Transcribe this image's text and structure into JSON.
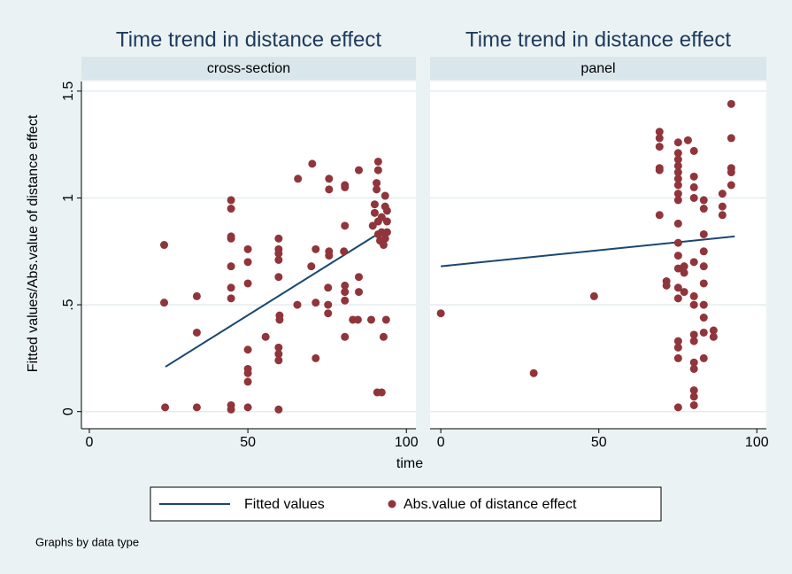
{
  "figure": {
    "ylabel": "Fitted values/Abs.value of distance effect",
    "xlabel": "time",
    "note": "Graphs by data type"
  },
  "chart_data": [
    {
      "type": "scatter",
      "title": "Time trend in distance effect",
      "subtitle": "cross-section",
      "xlim": [
        -2.5,
        103
      ],
      "xticks": [
        0,
        50,
        100
      ],
      "ylim": [
        -0.08,
        1.545
      ],
      "yticks": [
        0,
        {
          "value": 0.5,
          "label": ".5"
        },
        1,
        1.5
      ],
      "grid": true,
      "series": [
        {
          "name": "Fitted values",
          "type": "line",
          "color": "#1a476f",
          "x": [
            24,
            93
          ],
          "values": [
            0.21,
            0.85
          ]
        },
        {
          "name": "Abs.value of distance effect",
          "type": "scatter",
          "color": "#90353b",
          "x": [
            23.6,
            23.6,
            23.9,
            33.9,
            33.9,
            33.9,
            44.7,
            44.7,
            44.7,
            44.7,
            44.7,
            44.7,
            44.7,
            44.7,
            44.7,
            50,
            50,
            50,
            50,
            50,
            50,
            50,
            50,
            55.6,
            59.7,
            59.7,
            59.7,
            59.7,
            59.7,
            60,
            60,
            59.7,
            59.7,
            59.7,
            59.7,
            65.8,
            65.6,
            70.3,
            70,
            71.4,
            71.4,
            71.4,
            75.6,
            75.6,
            75.6,
            75.6,
            75.3,
            75.3,
            75.3,
            80.6,
            80.6,
            80.6,
            80.3,
            80.6,
            80.6,
            80.6,
            80.6,
            85,
            85,
            85,
            83.1,
            84.7,
            88.9,
            91.1,
            91.1,
            90.6,
            90.6,
            90,
            90,
            89.4,
            91.1,
            91.1,
            92.2,
            93.3,
            93.3,
            93.9,
            93.9,
            93.3,
            92.8,
            92.2,
            91.7,
            93.9,
            92.2,
            90.8,
            93.6,
            92.8
          ],
          "values": [
            0.78,
            0.51,
            0.02,
            0.37,
            0.54,
            0.02,
            0.99,
            0.95,
            0.82,
            0.81,
            0.68,
            0.58,
            0.53,
            0.03,
            0.01,
            0.76,
            0.7,
            0.6,
            0.29,
            0.2,
            0.18,
            0.14,
            0.02,
            0.35,
            0.81,
            0.76,
            0.74,
            0.71,
            0.63,
            0.45,
            0.43,
            0.3,
            0.27,
            0.24,
            0.01,
            1.09,
            0.5,
            1.16,
            0.68,
            0.76,
            0.51,
            0.25,
            1.09,
            1.04,
            0.75,
            0.73,
            0.58,
            0.5,
            0.46,
            1.06,
            1.05,
            0.87,
            0.75,
            0.59,
            0.56,
            0.52,
            0.35,
            1.13,
            0.63,
            0.56,
            0.43,
            0.43,
            0.43,
            1.17,
            1.13,
            1.07,
            1.04,
            0.97,
            0.93,
            0.87,
            0.83,
            0.89,
            0.91,
            1.01,
            0.96,
            0.89,
            0.84,
            0.81,
            0.78,
            0.84,
            0.8,
            0.94,
            0.09,
            0.09,
            0.43,
            0.35
          ]
        }
      ]
    },
    {
      "type": "scatter",
      "title": "Time trend in distance effect",
      "subtitle": "panel",
      "xlim": [
        -3.4,
        103
      ],
      "xticks": [
        0,
        50,
        100
      ],
      "ylim": [
        -0.08,
        1.545
      ],
      "yticks": [
        0,
        {
          "value": 0.5,
          "label": ".5"
        },
        1,
        1.5
      ],
      "grid": true,
      "series": [
        {
          "name": "Fitted values",
          "type": "line",
          "color": "#1a476f",
          "x": [
            0,
            93
          ],
          "values": [
            0.68,
            0.82
          ]
        },
        {
          "name": "Abs.value of distance effect",
          "type": "scatter",
          "color": "#90353b",
          "x": [
            0,
            29.4,
            48.5,
            69.2,
            69.2,
            69.2,
            69.2,
            69.2,
            69.2,
            71.4,
            71.4,
            75.1,
            75.1,
            75.1,
            75.1,
            75.1,
            75.1,
            75.1,
            75.1,
            75.1,
            75.1,
            75.1,
            75.1,
            75.1,
            75.1,
            75.1,
            75.1,
            75.1,
            75.1,
            75.1,
            77,
            77,
            77,
            78.2,
            80.1,
            80.1,
            80.1,
            80.1,
            80.1,
            80.1,
            80.1,
            80.1,
            80.1,
            80.1,
            80.1,
            80.1,
            80.1,
            80.1,
            83.2,
            83.2,
            83.2,
            83.2,
            83.2,
            83.2,
            83.2,
            83.2,
            83.2,
            83.2,
            86.3,
            86.3,
            89.1,
            89.1,
            89.1,
            91.9,
            91.9,
            91.9,
            91.9,
            91.9
          ],
          "values": [
            0.46,
            0.18,
            0.54,
            1.31,
            1.28,
            1.24,
            1.14,
            1.13,
            0.92,
            0.61,
            0.59,
            1.26,
            1.21,
            1.18,
            1.15,
            1.12,
            1.09,
            1.06,
            1.02,
            0.99,
            0.88,
            0.79,
            0.73,
            0.67,
            0.58,
            0.53,
            0.33,
            0.3,
            0.25,
            0.02,
            0.68,
            0.65,
            0.56,
            1.27,
            1.22,
            1.1,
            1.05,
            1.0,
            0.7,
            0.54,
            0.5,
            0.36,
            0.33,
            0.23,
            0.2,
            0.1,
            0.07,
            0.03,
            0.99,
            0.95,
            0.83,
            0.75,
            0.68,
            0.6,
            0.5,
            0.44,
            0.37,
            0.25,
            0.38,
            0.35,
            1.02,
            0.96,
            0.92,
            1.44,
            1.28,
            1.14,
            1.12,
            1.06
          ]
        }
      ]
    }
  ]
}
